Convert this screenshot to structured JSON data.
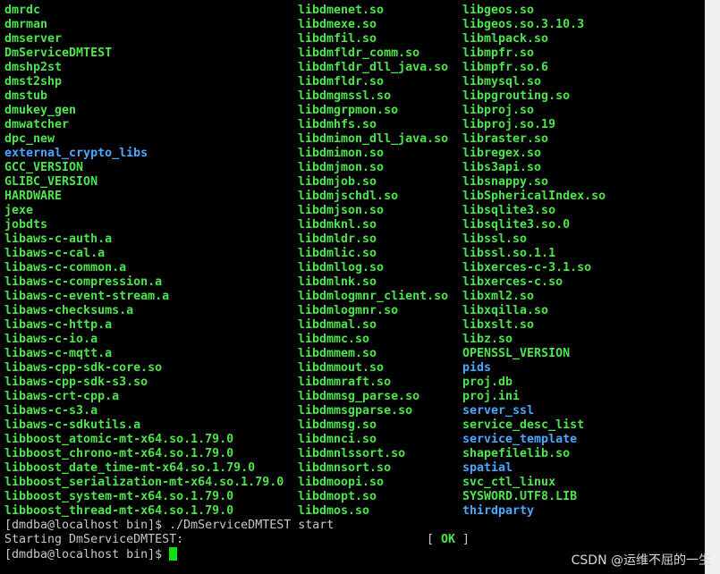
{
  "colors": {
    "executable": "#4ee44e",
    "directory": "#4aa8ff",
    "plain": "#c8c8c8",
    "background": "#000000"
  },
  "listing": {
    "columns": [
      [
        "dmrdc",
        "dmrman",
        "dmserver",
        "DmServiceDMTEST",
        "dmshp2st",
        "dmst2shp",
        "dmstub",
        "dmukey_gen",
        "dmwatcher",
        "dpc_new",
        "external_crypto_libs",
        "GCC_VERSION",
        "GLIBC_VERSION",
        "HARDWARE",
        "jexe",
        "jobdts",
        "libaws-c-auth.a",
        "libaws-c-cal.a",
        "libaws-c-common.a",
        "libaws-c-compression.a",
        "libaws-c-event-stream.a",
        "libaws-checksums.a",
        "libaws-c-http.a",
        "libaws-c-io.a",
        "libaws-c-mqtt.a",
        "libaws-cpp-sdk-core.so",
        "libaws-cpp-sdk-s3.so",
        "libaws-crt-cpp.a",
        "libaws-c-s3.a",
        "libaws-c-sdkutils.a",
        "libboost_atomic-mt-x64.so.1.79.0",
        "libboost_chrono-mt-x64.so.1.79.0",
        "libboost_date_time-mt-x64.so.1.79.0",
        "libboost_serialization-mt-x64.so.1.79.0",
        "libboost_system-mt-x64.so.1.79.0",
        "libboost_thread-mt-x64.so.1.79.0"
      ],
      [
        "libdmenet.so",
        "libdmexe.so",
        "libdmfil.so",
        "libdmfldr_comm.so",
        "libdmfldr_dll_java.so",
        "libdmfldr.so",
        "libdmgmssl.so",
        "libdmgrpmon.so",
        "libdmhfs.so",
        "libdmimon_dll_java.so",
        "libdmimon.so",
        "libdmjmon.so",
        "libdmjob.so",
        "libdmjschdl.so",
        "libdmjson.so",
        "libdmknl.so",
        "libdmldr.so",
        "libdmlic.so",
        "libdmllog.so",
        "libdmlnk.so",
        "libdmlogmnr_client.so",
        "libdmlogmnr.so",
        "libdmmal.so",
        "libdmmc.so",
        "libdmmem.so",
        "libdmmout.so",
        "libdmmraft.so",
        "libdmmsg_parse.so",
        "libdmmsgparse.so",
        "libdmmsg.so",
        "libdmnci.so",
        "libdmnlssort.so",
        "libdmnsort.so",
        "libdmoopi.so",
        "libdmopt.so",
        "libdmos.so"
      ],
      [
        "libgeos.so",
        "libgeos.so.3.10.3",
        "libmlpack.so",
        "libmpfr.so",
        "libmpfr.so.6",
        "libmysql.so",
        "libpgrouting.so",
        "libproj.so",
        "libproj.so.19",
        "libraster.so",
        "libregex.so",
        "libs3api.so",
        "libsnappy.so",
        "libSphericalIndex.so",
        "libsqlite3.so",
        "libsqlite3.so.0",
        "libssl.so",
        "libssl.so.1.1",
        "libxerces-c-3.1.so",
        "libxerces-c.so",
        "libxml2.so",
        "libxqilla.so",
        "libxslt.so",
        "libz.so",
        "OPENSSL_VERSION",
        "pids",
        "proj.db",
        "proj.ini",
        "server_ssl",
        "service_desc_list",
        "service_template",
        "shapefilelib.so",
        "spatial",
        "svc_ctl_linux",
        "SYSWORD.UTF8.LIB",
        "thirdparty"
      ]
    ],
    "directories": [
      "external_crypto_libs",
      "pids",
      "server_ssl",
      "service_template",
      "spatial",
      "thirdparty"
    ]
  },
  "session": {
    "command_line": "[dmdba@localhost bin]$ ./DmServiceDMTEST start",
    "status_text": "Starting DmServiceDMTEST:",
    "status_open": "[ ",
    "status_ok": "OK",
    "status_close": " ]",
    "prompt": "[dmdba@localhost bin]$ "
  },
  "watermark": "CSDN @运维不屈的一生"
}
